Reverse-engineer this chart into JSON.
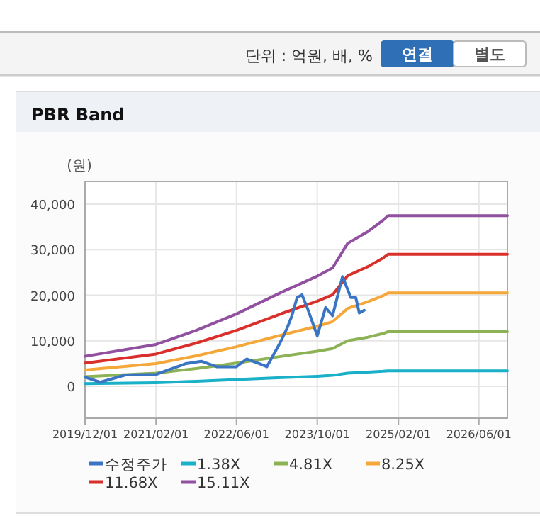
{
  "chart_data": {
    "type": "line",
    "title": "PBR Band",
    "ylabel": "(원)",
    "annotations": [
      "단위 : 억원, 배, %",
      "연결",
      "별도"
    ],
    "x": [
      "2019-12-01",
      "2021-02-01",
      "2021-10-01",
      "2022-06-01",
      "2023-03-01",
      "2023-10-01",
      "2024-01-01",
      "2024-04-01",
      "2024-08-01",
      "2024-11-01",
      "2024-12-01",
      "2026-11-20"
    ],
    "series": [
      {
        "name": "수정주가",
        "color": "#3a75c4",
        "x": [
          "2019-12-01",
          "2020-03-01",
          "2020-08-01",
          "2021-02-01",
          "2021-04-01",
          "2021-08-01",
          "2021-11-01",
          "2022-02-01",
          "2022-06-01",
          "2022-08-01",
          "2022-10-15",
          "2022-12-01",
          "2023-02-15",
          "2023-04-01",
          "2023-05-01",
          "2023-06-01",
          "2023-07-01",
          "2023-08-01",
          "2023-10-01",
          "2023-11-20",
          "2024-01-01",
          "2024-03-01",
          "2024-04-20",
          "2024-05-20",
          "2024-06-10",
          "2024-07-10"
        ],
        "values": [
          2000,
          900,
          2500,
          2600,
          3400,
          5000,
          5500,
          4300,
          4300,
          6000,
          5000,
          4300,
          9300,
          12700,
          15500,
          19500,
          20100,
          17300,
          11100,
          17300,
          15500,
          24100,
          19500,
          19500,
          16100,
          16700
        ]
      },
      {
        "name": "1.38X",
        "color": "#1ab0c8",
        "values": [
          600,
          800,
          1100,
          1500,
          1900,
          2200,
          2400,
          2900,
          3100,
          3300,
          3400,
          3400
        ]
      },
      {
        "name": "4.81X",
        "color": "#8db255",
        "values": [
          2100,
          2900,
          3900,
          5100,
          6600,
          7700,
          8300,
          10000,
          10800,
          11600,
          12000,
          12000
        ]
      },
      {
        "name": "8.25X",
        "color": "#f5a83a",
        "values": [
          3600,
          5000,
          6700,
          8700,
          11300,
          13200,
          14200,
          17100,
          18600,
          19900,
          20500,
          20500
        ]
      },
      {
        "name": "11.68X",
        "color": "#d9302c",
        "values": [
          5100,
          7100,
          9500,
          12300,
          16000,
          18700,
          20100,
          24300,
          26300,
          28200,
          29000,
          29000
        ]
      },
      {
        "name": "15.11X",
        "color": "#9150a0",
        "values": [
          6600,
          9200,
          12300,
          15900,
          20700,
          24200,
          26000,
          31400,
          34000,
          36500,
          37500,
          37500
        ]
      }
    ],
    "xlim": [
      "2019-12-01",
      "2026-11-20"
    ],
    "xticks": [
      {
        "value": "2019-12-01",
        "label": "2019/12/01"
      },
      {
        "value": "2021-02-01",
        "label": "2021/02/01"
      },
      {
        "value": "2022-06-01",
        "label": "2022/06/01"
      },
      {
        "value": "2023-10-01",
        "label": "2023/10/01"
      },
      {
        "value": "2025-02-01",
        "label": "2025/02/01"
      },
      {
        "value": "2026-06-01",
        "label": "2026/06/01"
      }
    ],
    "ylim": [
      -7000,
      45000
    ],
    "yticks": [
      0,
      {
        "value": 10000,
        "label": "10,000"
      },
      {
        "value": 20000,
        "label": "20,000"
      },
      {
        "value": 30000,
        "label": "30,000"
      },
      {
        "value": 40000,
        "label": "40,000"
      }
    ],
    "grid": true,
    "legend": "bottom",
    "marker": "none",
    "line_style": "solid"
  }
}
